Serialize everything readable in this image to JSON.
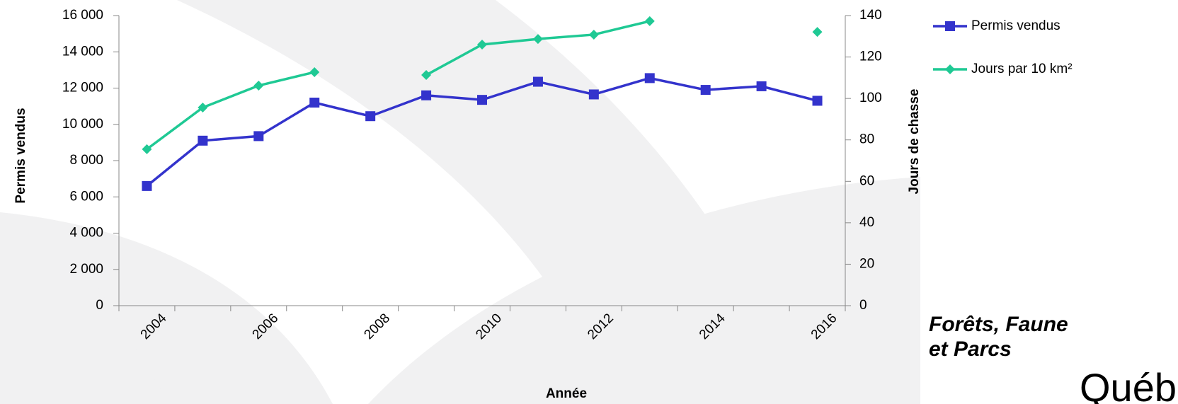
{
  "chart_data": {
    "type": "line",
    "x_label": "Année",
    "y_label": "Permis vendus",
    "y2_label": "Jours de chasse",
    "categories": [
      "2004",
      null,
      "2006",
      null,
      "2008",
      null,
      "2010",
      null,
      "2012",
      null,
      "2014",
      null,
      "2016"
    ],
    "series": [
      {
        "name": "Permis vendus",
        "color": "#3333cc",
        "marker": "square",
        "values": [
          6600,
          9100,
          9350,
          11200,
          10450,
          11600,
          11350,
          12350,
          11650,
          12550,
          11900,
          12100,
          11300
        ]
      },
      {
        "name": "Jours par 10 km²",
        "color": "#1fc994",
        "marker": "diamond",
        "axis": "y2",
        "values": [
          75.5,
          95.6,
          106.2,
          112.7,
          null,
          111.3,
          126,
          128.7,
          130.8,
          137.3,
          null,
          null,
          132.1
        ]
      }
    ],
    "ylim": [
      0,
      16000
    ],
    "yticks": [
      0,
      {
        "value": 2000,
        "label": "2 000"
      },
      {
        "value": 4000,
        "label": "4 000"
      },
      {
        "value": 6000,
        "label": "6 000"
      },
      {
        "value": 8000,
        "label": "8 000"
      },
      {
        "value": 10000,
        "label": "10 000"
      },
      {
        "value": 12000,
        "label": "12 000"
      },
      {
        "value": 14000,
        "label": "14 000"
      },
      {
        "value": 16000,
        "label": "16 000"
      }
    ],
    "y2lim": [
      0,
      140
    ],
    "y2ticks": [
      0,
      20,
      40,
      60,
      80,
      100,
      120,
      140
    ],
    "legend": "top-right"
  },
  "logo": {
    "lines": [
      "Forêts, Faune",
      "et Parcs"
    ],
    "name": "Québec"
  }
}
